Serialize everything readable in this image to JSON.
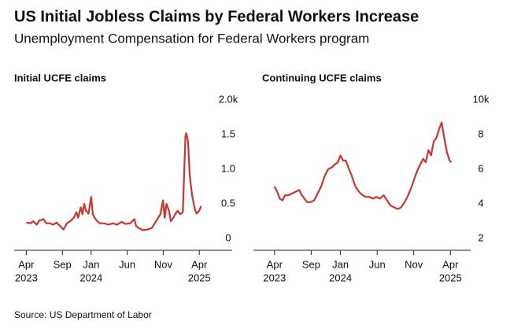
{
  "title": "US Initial Jobless Claims by Federal Workers Increase",
  "subtitle": "Unemployment Compensation for Federal Workers program",
  "source": "Source: US Department of Labor",
  "chart_data": [
    {
      "type": "line",
      "title": "Initial UCFE claims",
      "color": "#d2322d",
      "x": [
        2023.25,
        2023.3,
        2023.33,
        2023.37,
        2023.4,
        2023.45,
        2023.48,
        2023.52,
        2023.56,
        2023.6,
        2023.65,
        2023.68,
        2023.72,
        2023.76,
        2023.8,
        2023.83,
        2023.85,
        2023.88,
        2023.9,
        2023.92,
        2023.94,
        2023.97,
        2024.0,
        2024.02,
        2024.04,
        2024.07,
        2024.1,
        2024.15,
        2024.2,
        2024.25,
        2024.3,
        2024.35,
        2024.4,
        2024.45,
        2024.5,
        2024.52,
        2024.55,
        2024.6,
        2024.65,
        2024.7,
        2024.75,
        2024.8,
        2024.83,
        2024.85,
        2024.87,
        2024.9,
        2024.92,
        2024.95,
        2024.97,
        2025.0,
        2025.03,
        2025.06,
        2025.09,
        2025.1,
        2025.12,
        2025.14,
        2025.17,
        2025.2,
        2025.22,
        2025.25,
        2025.27
      ],
      "values": [
        0.23,
        0.22,
        0.25,
        0.2,
        0.26,
        0.28,
        0.22,
        0.22,
        0.2,
        0.23,
        0.17,
        0.13,
        0.22,
        0.25,
        0.3,
        0.38,
        0.3,
        0.45,
        0.35,
        0.5,
        0.4,
        0.36,
        0.6,
        0.35,
        0.3,
        0.25,
        0.22,
        0.22,
        0.2,
        0.22,
        0.2,
        0.24,
        0.21,
        0.22,
        0.28,
        0.18,
        0.15,
        0.12,
        0.13,
        0.15,
        0.25,
        0.35,
        0.55,
        0.3,
        0.5,
        0.4,
        0.25,
        0.3,
        0.35,
        0.4,
        0.35,
        0.38,
        1.48,
        1.52,
        1.4,
        0.9,
        0.6,
        0.42,
        0.36,
        0.4,
        0.47
      ],
      "xlim": [
        2023.11,
        2025.63
      ],
      "xticks": [
        {
          "value": 2023.25,
          "label": "Apr"
        },
        {
          "value": 2023.667,
          "label": "Sep"
        },
        {
          "value": 2024.0,
          "label": "Jan"
        },
        {
          "value": 2024.417,
          "label": "Jun"
        },
        {
          "value": 2024.833,
          "label": "Nov"
        },
        {
          "value": 2025.25,
          "label": "Apr"
        }
      ],
      "year_labels": [
        {
          "value": 2023.25,
          "label": "2023"
        },
        {
          "value": 2024.0,
          "label": "2024"
        },
        {
          "value": 2025.25,
          "label": "2025"
        }
      ],
      "ylim": [
        -0.17,
        2.0
      ],
      "yticks": [
        0,
        0.5,
        {
          "value": 1,
          "label": "1.0"
        },
        1.5,
        {
          "value": 2,
          "label": "2.0k"
        }
      ]
    },
    {
      "type": "line",
      "title": "Continuing UCFE claims",
      "color": "#d2322d",
      "x": [
        2023.25,
        2023.28,
        2023.31,
        2023.34,
        2023.37,
        2023.41,
        2023.45,
        2023.49,
        2023.53,
        2023.56,
        2023.59,
        2023.62,
        2023.66,
        2023.7,
        2023.74,
        2023.78,
        2023.82,
        2023.86,
        2023.9,
        2023.94,
        2023.97,
        2024.0,
        2024.03,
        2024.06,
        2024.09,
        2024.13,
        2024.17,
        2024.21,
        2024.25,
        2024.29,
        2024.33,
        2024.37,
        2024.41,
        2024.45,
        2024.49,
        2024.53,
        2024.57,
        2024.61,
        2024.65,
        2024.69,
        2024.73,
        2024.77,
        2024.81,
        2024.85,
        2024.88,
        2024.91,
        2024.94,
        2024.97,
        2025.0,
        2025.03,
        2025.06,
        2025.09,
        2025.12,
        2025.15,
        2025.18,
        2025.21,
        2025.24,
        2025.26
      ],
      "values": [
        5.0,
        4.7,
        4.3,
        4.2,
        4.5,
        4.5,
        4.6,
        4.7,
        4.8,
        4.5,
        4.3,
        4.1,
        4.1,
        4.2,
        4.6,
        5.0,
        5.6,
        6.0,
        6.1,
        6.3,
        6.4,
        6.8,
        6.5,
        6.5,
        6.1,
        5.6,
        5.0,
        4.7,
        4.5,
        4.4,
        4.4,
        4.3,
        4.4,
        4.3,
        4.5,
        4.2,
        3.9,
        3.8,
        3.7,
        3.8,
        4.1,
        4.5,
        5.0,
        5.6,
        6.0,
        6.3,
        6.6,
        6.4,
        7.1,
        6.8,
        7.6,
        7.8,
        8.3,
        8.7,
        7.8,
        7.0,
        6.5,
        6.4
      ],
      "xlim": [
        2023.01,
        2025.48
      ],
      "xticks": [
        {
          "value": 2023.25,
          "label": "Apr"
        },
        {
          "value": 2023.667,
          "label": "Sep"
        },
        {
          "value": 2024.0,
          "label": "Jan"
        },
        {
          "value": 2024.417,
          "label": "Jun"
        },
        {
          "value": 2024.833,
          "label": "Nov"
        },
        {
          "value": 2025.25,
          "label": "Apr"
        }
      ],
      "year_labels": [
        {
          "value": 2023.25,
          "label": "2023"
        },
        {
          "value": 2024.0,
          "label": "2024"
        },
        {
          "value": 2025.25,
          "label": "2025"
        }
      ],
      "ylim": [
        1.32,
        10
      ],
      "yticks": [
        2,
        4,
        6,
        8,
        {
          "value": 10,
          "label": "10k"
        }
      ]
    }
  ]
}
